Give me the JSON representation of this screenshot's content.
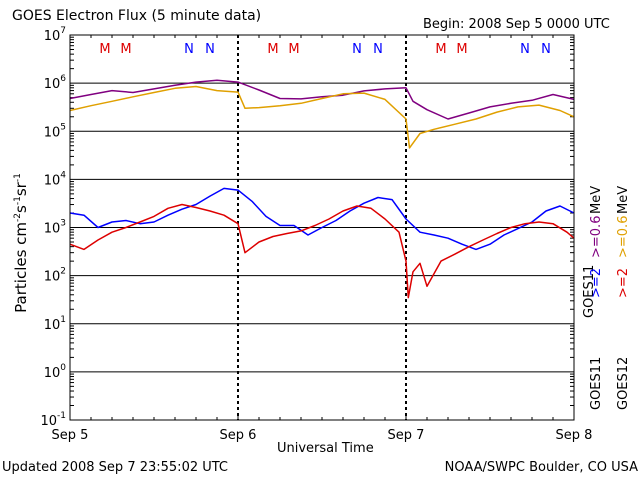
{
  "header": {
    "title": "GOES Electron Flux (5 minute data)",
    "begin": "Begin: 2008 Sep 5 0000 UTC"
  },
  "footer": {
    "updated": "Updated 2008 Sep  7 23:55:02 UTC",
    "source": "NOAA/SWPC Boulder, CO USA"
  },
  "axes": {
    "xlabel": "Universal Time",
    "ylabel_main": "Particles cm",
    "ylabel_sup1": "-2",
    "ylabel_s": "s",
    "ylabel_sup2": "-1",
    "ylabel_sr": "sr",
    "ylabel_sup3": "-1"
  },
  "legend": {
    "goes11_ge2": ">=2",
    "goes11_ge06": ">=0.6",
    "goes12_ge2": ">=2",
    "goes12_ge06": ">=0.6",
    "unit": "MeV",
    "sat11": "GOES11",
    "sat12": "GOES12"
  },
  "colors": {
    "goes11_ge2": "#0000ff",
    "goes11_ge06": "#800080",
    "goes12_ge2": "#dd0000",
    "goes12_ge06": "#e0a000",
    "midnight_markers": "#0000ff",
    "noon_markers": "#dd0000"
  },
  "chart_data": {
    "type": "line",
    "title": "GOES Electron Flux (5 minute data)",
    "xlabel": "Universal Time",
    "ylabel": "Particles cm-2 s-1 sr-1",
    "y_scale": "log",
    "ylim": [
      0.1,
      10000000
    ],
    "y_ticks": [
      {
        "value": 0.1,
        "base": "10",
        "exp": "-1"
      },
      {
        "value": 1,
        "base": "10",
        "exp": "0"
      },
      {
        "value": 10,
        "base": "10",
        "exp": "1"
      },
      {
        "value": 100,
        "base": "10",
        "exp": "2"
      },
      {
        "value": 1000,
        "base": "10",
        "exp": "3"
      },
      {
        "value": 10000,
        "base": "10",
        "exp": "4"
      },
      {
        "value": 100000,
        "base": "10",
        "exp": "5"
      },
      {
        "value": 1000000,
        "base": "10",
        "exp": "6"
      },
      {
        "value": 10000000,
        "base": "10",
        "exp": "7"
      }
    ],
    "xlim": [
      "2008-09-05 00:00",
      "2008-09-08 00:00"
    ],
    "x_ticks": [
      {
        "value": "2008-09-05 00:00",
        "label": "Sep 5"
      },
      {
        "value": "2008-09-06 00:00",
        "label": "Sep 6"
      },
      {
        "value": "2008-09-07 00:00",
        "label": "Sep 7"
      },
      {
        "value": "2008-09-08 00:00",
        "label": "Sep 8"
      }
    ],
    "alert_threshold": 1000,
    "local_time_markers": [
      {
        "time": "2008-09-05 05:00",
        "label": "M"
      },
      {
        "time": "2008-09-05 08:00",
        "label": "M"
      },
      {
        "time": "2008-09-05 17:00",
        "label": "N"
      },
      {
        "time": "2008-09-05 20:00",
        "label": "N"
      },
      {
        "time": "2008-09-06 05:00",
        "label": "M"
      },
      {
        "time": "2008-09-06 08:00",
        "label": "M"
      },
      {
        "time": "2008-09-06 17:00",
        "label": "N"
      },
      {
        "time": "2008-09-06 20:00",
        "label": "N"
      },
      {
        "time": "2008-09-07 05:00",
        "label": "M"
      },
      {
        "time": "2008-09-07 08:00",
        "label": "M"
      },
      {
        "time": "2008-09-07 17:00",
        "label": "N"
      },
      {
        "time": "2008-09-07 20:00",
        "label": "N"
      }
    ],
    "series": [
      {
        "key": "goes11_ge06",
        "points": [
          [
            "2008-09-05 00:00",
            480000
          ],
          [
            "2008-09-05 03:00",
            580000
          ],
          [
            "2008-09-05 06:00",
            700000
          ],
          [
            "2008-09-05 09:00",
            640000
          ],
          [
            "2008-09-05 12:00",
            760000
          ],
          [
            "2008-09-05 15:00",
            900000
          ],
          [
            "2008-09-05 18:00",
            1050000
          ],
          [
            "2008-09-05 21:00",
            1150000
          ],
          [
            "2008-09-06 00:00",
            1050000
          ],
          [
            "2008-09-06 03:00",
            720000
          ],
          [
            "2008-09-06 06:00",
            480000
          ],
          [
            "2008-09-06 09:00",
            470000
          ],
          [
            "2008-09-06 12:00",
            520000
          ],
          [
            "2008-09-06 15:00",
            560000
          ],
          [
            "2008-09-06 18:00",
            690000
          ],
          [
            "2008-09-06 21:00",
            760000
          ],
          [
            "2008-09-07 00:00",
            800000
          ],
          [
            "2008-09-07 01:00",
            420000
          ],
          [
            "2008-09-07 03:00",
            280000
          ],
          [
            "2008-09-07 06:00",
            180000
          ],
          [
            "2008-09-07 09:00",
            240000
          ],
          [
            "2008-09-07 12:00",
            320000
          ],
          [
            "2008-09-07 15:00",
            380000
          ],
          [
            "2008-09-07 18:00",
            440000
          ],
          [
            "2008-09-07 21:00",
            580000
          ],
          [
            "2008-09-08 00:00",
            460000
          ]
        ]
      },
      {
        "key": "goes12_ge06",
        "points": [
          [
            "2008-09-05 00:00",
            270000
          ],
          [
            "2008-09-05 03:00",
            340000
          ],
          [
            "2008-09-05 06:00",
            420000
          ],
          [
            "2008-09-05 09:00",
            520000
          ],
          [
            "2008-09-05 12:00",
            640000
          ],
          [
            "2008-09-05 15:00",
            780000
          ],
          [
            "2008-09-05 18:00",
            850000
          ],
          [
            "2008-09-05 21:00",
            700000
          ],
          [
            "2008-09-06 00:00",
            650000
          ],
          [
            "2008-09-06 01:00",
            300000
          ],
          [
            "2008-09-06 03:00",
            310000
          ],
          [
            "2008-09-06 06:00",
            340000
          ],
          [
            "2008-09-06 09:00",
            380000
          ],
          [
            "2008-09-06 12:00",
            480000
          ],
          [
            "2008-09-06 15:00",
            600000
          ],
          [
            "2008-09-06 18:00",
            620000
          ],
          [
            "2008-09-06 21:00",
            460000
          ],
          [
            "2008-09-07 00:00",
            180000
          ],
          [
            "2008-09-07 00:30",
            45000
          ],
          [
            "2008-09-07 02:00",
            90000
          ],
          [
            "2008-09-07 04:00",
            110000
          ],
          [
            "2008-09-07 07:00",
            140000
          ],
          [
            "2008-09-07 10:00",
            180000
          ],
          [
            "2008-09-07 13:00",
            250000
          ],
          [
            "2008-09-07 16:00",
            320000
          ],
          [
            "2008-09-07 19:00",
            350000
          ],
          [
            "2008-09-07 22:00",
            270000
          ],
          [
            "2008-09-08 00:00",
            200000
          ]
        ]
      },
      {
        "key": "goes11_ge2",
        "points": [
          [
            "2008-09-05 00:00",
            2000
          ],
          [
            "2008-09-05 02:00",
            1800
          ],
          [
            "2008-09-05 04:00",
            1000
          ],
          [
            "2008-09-05 06:00",
            1300
          ],
          [
            "2008-09-05 08:00",
            1400
          ],
          [
            "2008-09-05 10:00",
            1200
          ],
          [
            "2008-09-05 12:00",
            1300
          ],
          [
            "2008-09-05 14:00",
            1800
          ],
          [
            "2008-09-05 16:00",
            2400
          ],
          [
            "2008-09-05 18:00",
            3000
          ],
          [
            "2008-09-05 20:00",
            4500
          ],
          [
            "2008-09-05 22:00",
            6500
          ],
          [
            "2008-09-06 00:00",
            6000
          ],
          [
            "2008-09-06 02:00",
            3500
          ],
          [
            "2008-09-06 04:00",
            1700
          ],
          [
            "2008-09-06 06:00",
            1100
          ],
          [
            "2008-09-06 08:00",
            1100
          ],
          [
            "2008-09-06 10:00",
            700
          ],
          [
            "2008-09-06 12:00",
            1000
          ],
          [
            "2008-09-06 14:00",
            1400
          ],
          [
            "2008-09-06 16:00",
            2200
          ],
          [
            "2008-09-06 18:00",
            3200
          ],
          [
            "2008-09-06 20:00",
            4200
          ],
          [
            "2008-09-06 22:00",
            3800
          ],
          [
            "2008-09-07 00:00",
            1500
          ],
          [
            "2008-09-07 02:00",
            800
          ],
          [
            "2008-09-07 04:00",
            700
          ],
          [
            "2008-09-07 06:00",
            600
          ],
          [
            "2008-09-07 08:00",
            450
          ],
          [
            "2008-09-07 10:00",
            350
          ],
          [
            "2008-09-07 12:00",
            450
          ],
          [
            "2008-09-07 14:00",
            700
          ],
          [
            "2008-09-07 16:00",
            950
          ],
          [
            "2008-09-07 18:00",
            1300
          ],
          [
            "2008-09-07 20:00",
            2200
          ],
          [
            "2008-09-07 22:00",
            2800
          ],
          [
            "2008-09-08 00:00",
            2000
          ]
        ]
      },
      {
        "key": "goes12_ge2",
        "points": [
          [
            "2008-09-05 00:00",
            450
          ],
          [
            "2008-09-05 02:00",
            350
          ],
          [
            "2008-09-05 04:00",
            550
          ],
          [
            "2008-09-05 06:00",
            800
          ],
          [
            "2008-09-05 08:00",
            1000
          ],
          [
            "2008-09-05 10:00",
            1300
          ],
          [
            "2008-09-05 12:00",
            1700
          ],
          [
            "2008-09-05 14:00",
            2500
          ],
          [
            "2008-09-05 16:00",
            3000
          ],
          [
            "2008-09-05 18:00",
            2600
          ],
          [
            "2008-09-05 20:00",
            2200
          ],
          [
            "2008-09-05 22:00",
            1800
          ],
          [
            "2008-09-06 00:00",
            1200
          ],
          [
            "2008-09-06 01:00",
            300
          ],
          [
            "2008-09-06 03:00",
            500
          ],
          [
            "2008-09-06 05:00",
            650
          ],
          [
            "2008-09-06 07:00",
            750
          ],
          [
            "2008-09-06 09:00",
            850
          ],
          [
            "2008-09-06 11:00",
            1100
          ],
          [
            "2008-09-06 13:00",
            1500
          ],
          [
            "2008-09-06 15:00",
            2200
          ],
          [
            "2008-09-06 17:00",
            2800
          ],
          [
            "2008-09-06 19:00",
            2500
          ],
          [
            "2008-09-06 21:00",
            1500
          ],
          [
            "2008-09-06 23:00",
            800
          ],
          [
            "2008-09-07 00:00",
            200
          ],
          [
            "2008-09-07 00:20",
            35
          ],
          [
            "2008-09-07 01:00",
            120
          ],
          [
            "2008-09-07 02:00",
            180
          ],
          [
            "2008-09-07 03:00",
            60
          ],
          [
            "2008-09-07 05:00",
            200
          ],
          [
            "2008-09-07 07:00",
            280
          ],
          [
            "2008-09-07 09:00",
            400
          ],
          [
            "2008-09-07 11:00",
            550
          ],
          [
            "2008-09-07 13:00",
            750
          ],
          [
            "2008-09-07 15:00",
            1000
          ],
          [
            "2008-09-07 17:00",
            1200
          ],
          [
            "2008-09-07 19:00",
            1300
          ],
          [
            "2008-09-07 21:00",
            1200
          ],
          [
            "2008-09-07 23:00",
            800
          ],
          [
            "2008-09-08 00:00",
            600
          ]
        ]
      }
    ]
  }
}
